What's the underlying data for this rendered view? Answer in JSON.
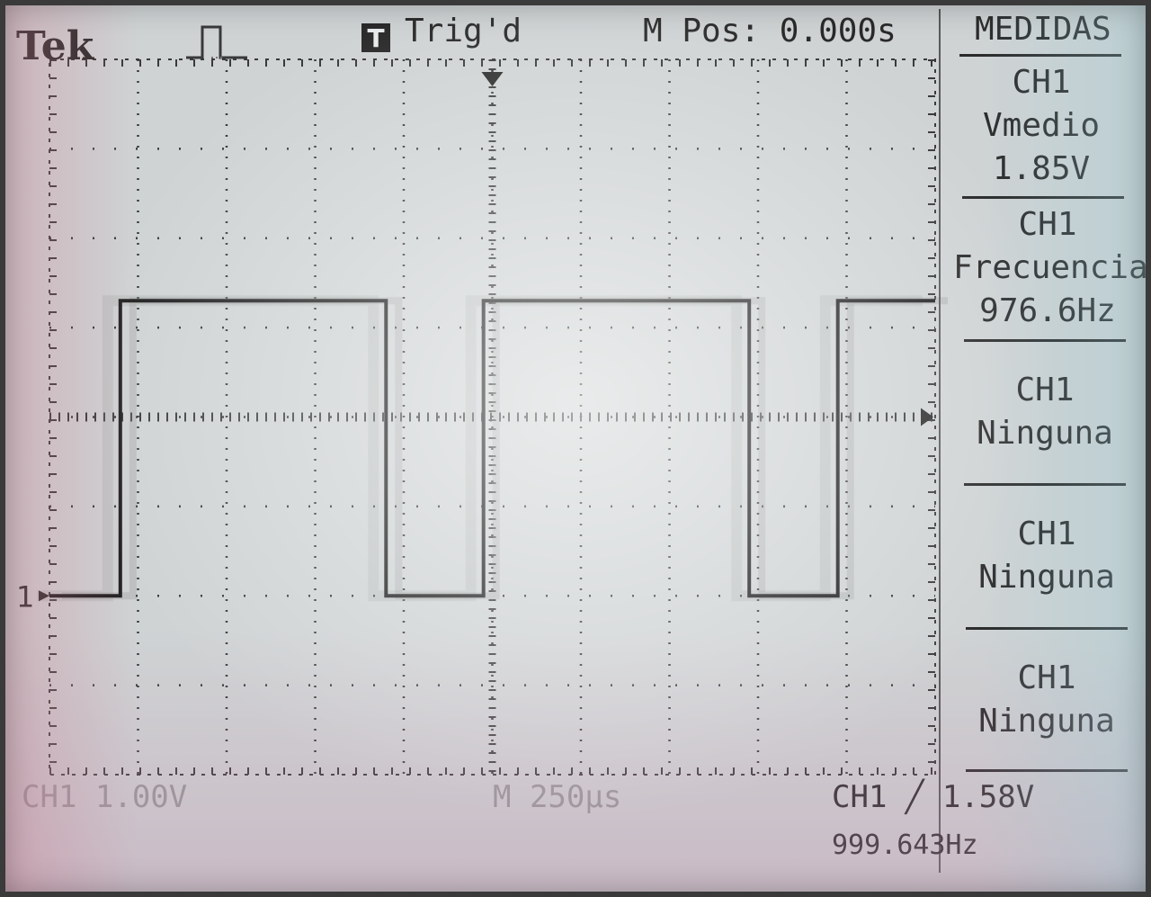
{
  "header": {
    "brand": "Tek",
    "trigger_badge": "T",
    "trigger_state": "Trig'd",
    "main_position": "M Pos: 0.000s"
  },
  "measures": {
    "title": "MEDIDAS",
    "items": [
      {
        "channel": "CH1",
        "type": "Vmedio",
        "value": "1.85V"
      },
      {
        "channel": "CH1",
        "type": "Frecuencia",
        "value": "976.6Hz"
      },
      {
        "channel": "CH1",
        "type": "Ninguna",
        "value": ""
      },
      {
        "channel": "CH1",
        "type": "Ninguna",
        "value": ""
      },
      {
        "channel": "CH1",
        "type": "Ninguna",
        "value": ""
      }
    ]
  },
  "footer": {
    "ch1_scale": "CH1  1.00V",
    "timebase": "M 250µs",
    "trigger_info": "CH1 ╱ 1.58V",
    "trigger_freq": "999.643Hz"
  },
  "channel_marker": "1",
  "colors": {
    "trace": "#1f1f1f",
    "grid": "#3a3a3a",
    "background": "#cfd3d4"
  },
  "icons": {
    "trigger": "trigger-pulse-icon",
    "ground": "channel-ground-marker-icon",
    "trigger_level": "trigger-level-arrow-icon",
    "trigger_position": "trigger-position-arrow-icon"
  },
  "chart_data": {
    "type": "line",
    "x_unit_per_div": "250µs",
    "y_unit_per_div": "1.00V",
    "xlim_div": [
      0,
      10
    ],
    "ylim_div": [
      0,
      8
    ],
    "grid": true,
    "series": [
      {
        "name": "CH1",
        "x_div": [
          0,
          0.8,
          0.8,
          3.8,
          3.8,
          4.9,
          4.9,
          7.9,
          7.9,
          8.9,
          8.9,
          10
        ],
        "y_volts": [
          0,
          0,
          3.3,
          3.3,
          0,
          0,
          3.3,
          3.3,
          0,
          0,
          3.3,
          3.3
        ]
      }
    ]
  }
}
